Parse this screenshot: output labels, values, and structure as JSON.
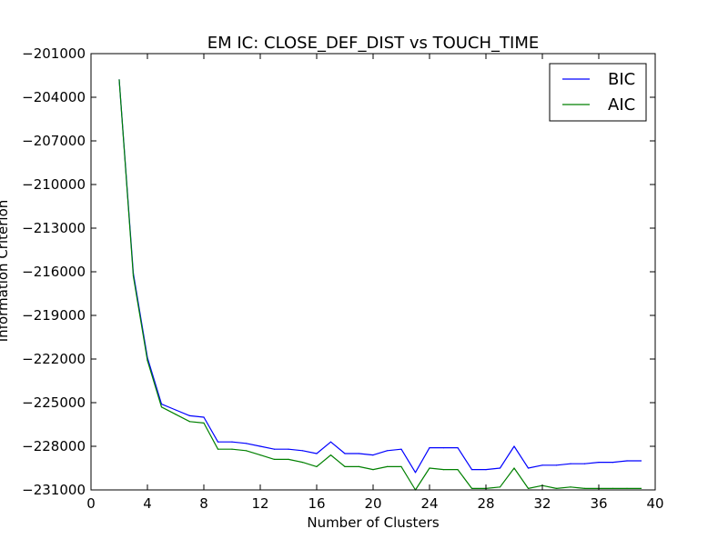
{
  "chart_data": {
    "type": "line",
    "title": "EM IC: CLOSE_DEF_DIST vs TOUCH_TIME",
    "xlabel": "Number of Clusters",
    "ylabel": "Information Criterion",
    "xlim": [
      0,
      40
    ],
    "ylim": [
      -231000,
      -201000
    ],
    "xticks": [
      0,
      4,
      8,
      12,
      16,
      20,
      24,
      28,
      32,
      36,
      40
    ],
    "xtick_labels": [
      "0",
      "4",
      "8",
      "12",
      "16",
      "20",
      "24",
      "28",
      "32",
      "36",
      "40"
    ],
    "yticks": [
      -201000,
      -204000,
      -207000,
      -210000,
      -213000,
      -216000,
      -219000,
      -222000,
      -225000,
      -228000,
      -231000
    ],
    "ytick_labels": [
      "−201000",
      "−204000",
      "−207000",
      "−210000",
      "−213000",
      "−216000",
      "−219000",
      "−222000",
      "−225000",
      "−228000",
      "−231000"
    ],
    "grid": false,
    "legend_position": "top-right",
    "x": [
      2,
      3,
      4,
      5,
      6,
      7,
      8,
      9,
      10,
      11,
      12,
      13,
      14,
      15,
      16,
      17,
      18,
      19,
      20,
      21,
      22,
      23,
      24,
      25,
      26,
      27,
      28,
      29,
      30,
      31,
      32,
      33,
      34,
      35,
      36,
      37,
      38,
      39
    ],
    "series": [
      {
        "name": "BIC",
        "color": "#0000ff",
        "values": [
          -202800,
          -216100,
          -221900,
          -225100,
          -225500,
          -225900,
          -226000,
          -227700,
          -227700,
          -227800,
          -228000,
          -228200,
          -228200,
          -228300,
          -228500,
          -227700,
          -228500,
          -228500,
          -228600,
          -228300,
          -228200,
          -229800,
          -228100,
          -228100,
          -228100,
          -229600,
          -229600,
          -229500,
          -228000,
          -229500,
          -229300,
          -229300,
          -229200,
          -229200,
          -229100,
          -229100,
          -229000,
          -229000
        ]
      },
      {
        "name": "AIC",
        "color": "#008000",
        "values": [
          -202800,
          -216300,
          -222100,
          -225300,
          -225800,
          -226300,
          -226400,
          -228200,
          -228200,
          -228300,
          -228600,
          -228900,
          -228900,
          -229100,
          -229400,
          -228600,
          -229400,
          -229400,
          -229600,
          -229400,
          -229400,
          -231000,
          -229500,
          -229600,
          -229600,
          -230900,
          -230900,
          -230800,
          -229500,
          -230900,
          -230700,
          -230900,
          -230800,
          -230900,
          -230900,
          -230900,
          -230900,
          -230900
        ]
      }
    ]
  }
}
